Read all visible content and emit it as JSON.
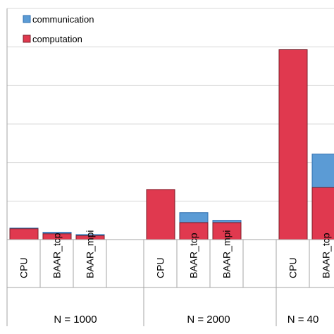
{
  "chart_data": {
    "type": "bar",
    "stacked": true,
    "title": "",
    "xlabel": "",
    "ylabel": "",
    "grid": true,
    "legend_position": "top-left",
    "groups": [
      "N = 1000",
      "N = 2000",
      "N = 40"
    ],
    "categories": [
      "CPU",
      "BAAR_tcp",
      "BAAR_mpi"
    ],
    "x": [
      {
        "group": "N = 1000",
        "category": "CPU"
      },
      {
        "group": "N = 1000",
        "category": "BAAR_tcp"
      },
      {
        "group": "N = 1000",
        "category": "BAAR_mpi"
      },
      {
        "group": "N = 2000",
        "category": "CPU"
      },
      {
        "group": "N = 2000",
        "category": "BAAR_tcp"
      },
      {
        "group": "N = 2000",
        "category": "BAAR_mpi"
      },
      {
        "group": "N = 40",
        "category": "CPU"
      },
      {
        "group": "N = 40",
        "category": "BAAR_tcp"
      }
    ],
    "ylim": [
      0,
      6
    ],
    "series": [
      {
        "name": "computation",
        "color": "#e0394f",
        "values": [
          0.28,
          0.15,
          0.1,
          1.3,
          0.44,
          0.44,
          4.93,
          1.35
        ]
      },
      {
        "name": "communication",
        "color": "#5b9bd5",
        "values": [
          0.02,
          0.04,
          0.03,
          0.0,
          0.26,
          0.06,
          0.0,
          0.87
        ]
      }
    ]
  },
  "colors": {
    "grid": "#d9d9d9",
    "axis": "#a6a6a6",
    "outline": "#7b1e2a"
  }
}
